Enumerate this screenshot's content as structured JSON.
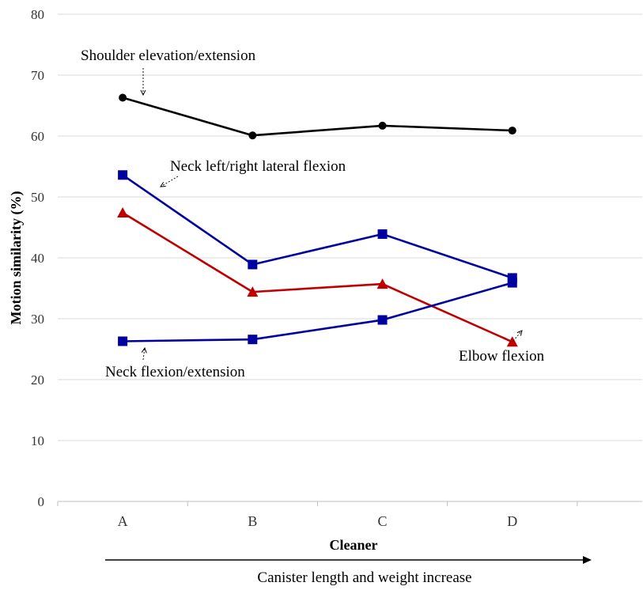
{
  "chart_data": {
    "type": "line",
    "categories": [
      "A",
      "B",
      "C",
      "D"
    ],
    "xlabel": "Cleaner",
    "ylabel": "Motion similarity  (%)",
    "ylim": [
      0,
      80
    ],
    "yticks": [
      0,
      10,
      20,
      30,
      40,
      50,
      60,
      70,
      80
    ],
    "grid": true,
    "legend": "none",
    "arrow_label": "Canister length and weight increase",
    "series": [
      {
        "name": "Shoulder elevation/extension",
        "values": [
          66.3,
          60.1,
          61.7,
          60.9
        ],
        "color": "#000000",
        "marker": "circle"
      },
      {
        "name": "Neck left/right lateral flexion",
        "values": [
          53.6,
          38.9,
          43.9,
          36.7
        ],
        "color": "#0000a0",
        "marker": "square"
      },
      {
        "name": "Elbow flexion",
        "values": [
          47.4,
          34.4,
          35.7,
          26.2
        ],
        "color": "#c00000",
        "marker": "triangle"
      },
      {
        "name": "Neck flexion/extension",
        "values": [
          26.3,
          26.6,
          29.8,
          35.9
        ],
        "color": "#0000a0",
        "marker": "square"
      }
    ]
  }
}
